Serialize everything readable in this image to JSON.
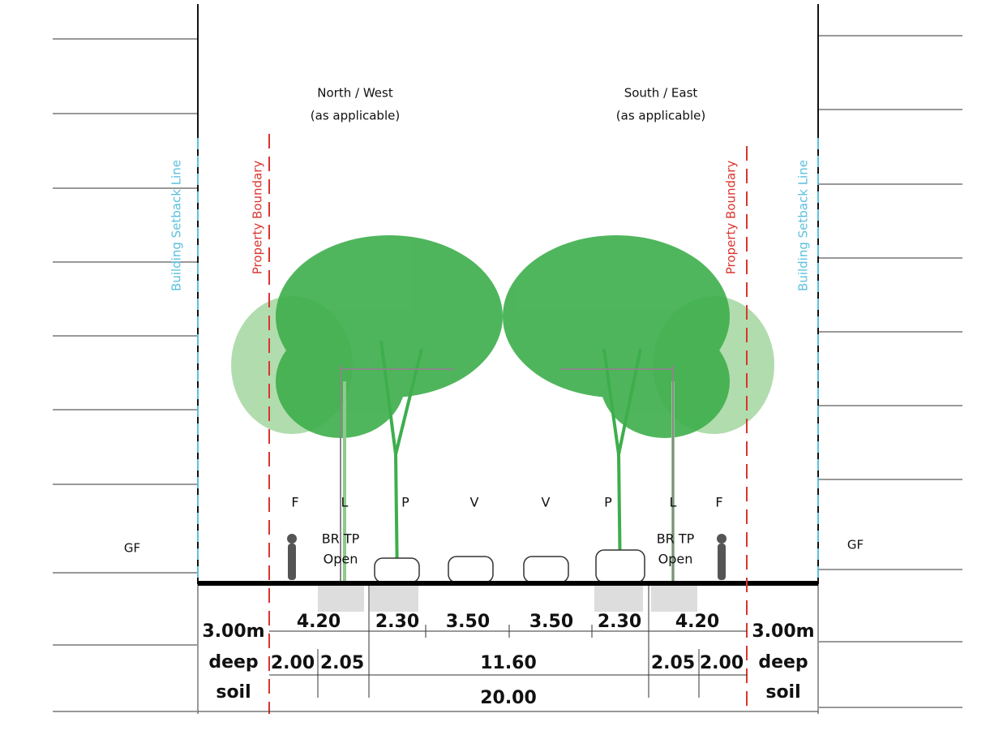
{
  "labels": {
    "north": {
      "title": "North / West",
      "note": "(as applicable)"
    },
    "south": {
      "title": "South / East",
      "note": "(as applicable)"
    }
  },
  "boundaries": [
    "Property Boundary",
    "Property Boundary"
  ],
  "setbacks": [
    "Building Setback Line",
    "Building Setback Line"
  ],
  "floor_labels": [
    "GF",
    "GF"
  ],
  "zones": [
    "F",
    "L",
    "P",
    "V",
    "V",
    "P",
    "L",
    "F"
  ],
  "verge_notes": [
    [
      "BR TP",
      "Open"
    ],
    [
      "BR TP",
      "Open"
    ]
  ],
  "dimensions": {
    "row1": [
      "4.20",
      "2.30",
      "3.50",
      "3.50",
      "2.30",
      "4.20"
    ],
    "row2": [
      "2.00",
      "2.05",
      "11.60",
      "2.05",
      "2.00"
    ],
    "total": "20.00",
    "deep_soil": [
      [
        "3.00m",
        "deep",
        "soil"
      ],
      [
        "3.00m",
        "deep",
        "soil"
      ]
    ]
  }
}
